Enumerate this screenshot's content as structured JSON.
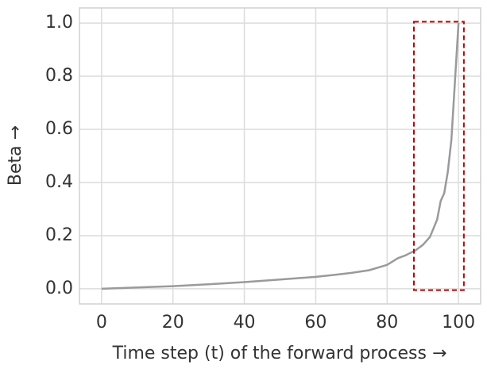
{
  "chart_data": {
    "type": "line",
    "x_label": "Time step (t) of the forward process →",
    "y_label": "Beta →",
    "x": [
      0,
      10,
      20,
      30,
      40,
      50,
      60,
      65,
      70,
      75,
      80,
      83,
      85,
      88,
      90,
      92,
      94,
      95,
      96,
      97,
      98,
      99,
      100
    ],
    "series": [
      {
        "color": "#9a9a9a",
        "values": [
          0.0,
          0.005,
          0.01,
          0.017,
          0.025,
          0.035,
          0.045,
          0.052,
          0.06,
          0.07,
          0.09,
          0.115,
          0.125,
          0.145,
          0.165,
          0.195,
          0.26,
          0.33,
          0.36,
          0.44,
          0.56,
          0.78,
          1.0
        ]
      }
    ],
    "xlim": [
      -6.2,
      106.2
    ],
    "ylim": [
      -0.057,
      1.057
    ],
    "xticks": [
      0,
      20,
      40,
      60,
      80,
      100
    ],
    "yticks": [
      {
        "value": 0,
        "label": "0.0"
      },
      {
        "value": 0.2,
        "label": "0.2"
      },
      {
        "value": 0.4,
        "label": "0.4"
      },
      {
        "value": 0.6,
        "label": "0.6"
      },
      {
        "value": 0.8,
        "label": "0.8"
      },
      {
        "value": 1,
        "label": "1.0"
      }
    ],
    "grid": true,
    "highlight": {
      "xlim": [
        87.5,
        101.5
      ],
      "ylim": [
        -0.005,
        1.005
      ],
      "color": "#c00000"
    }
  }
}
